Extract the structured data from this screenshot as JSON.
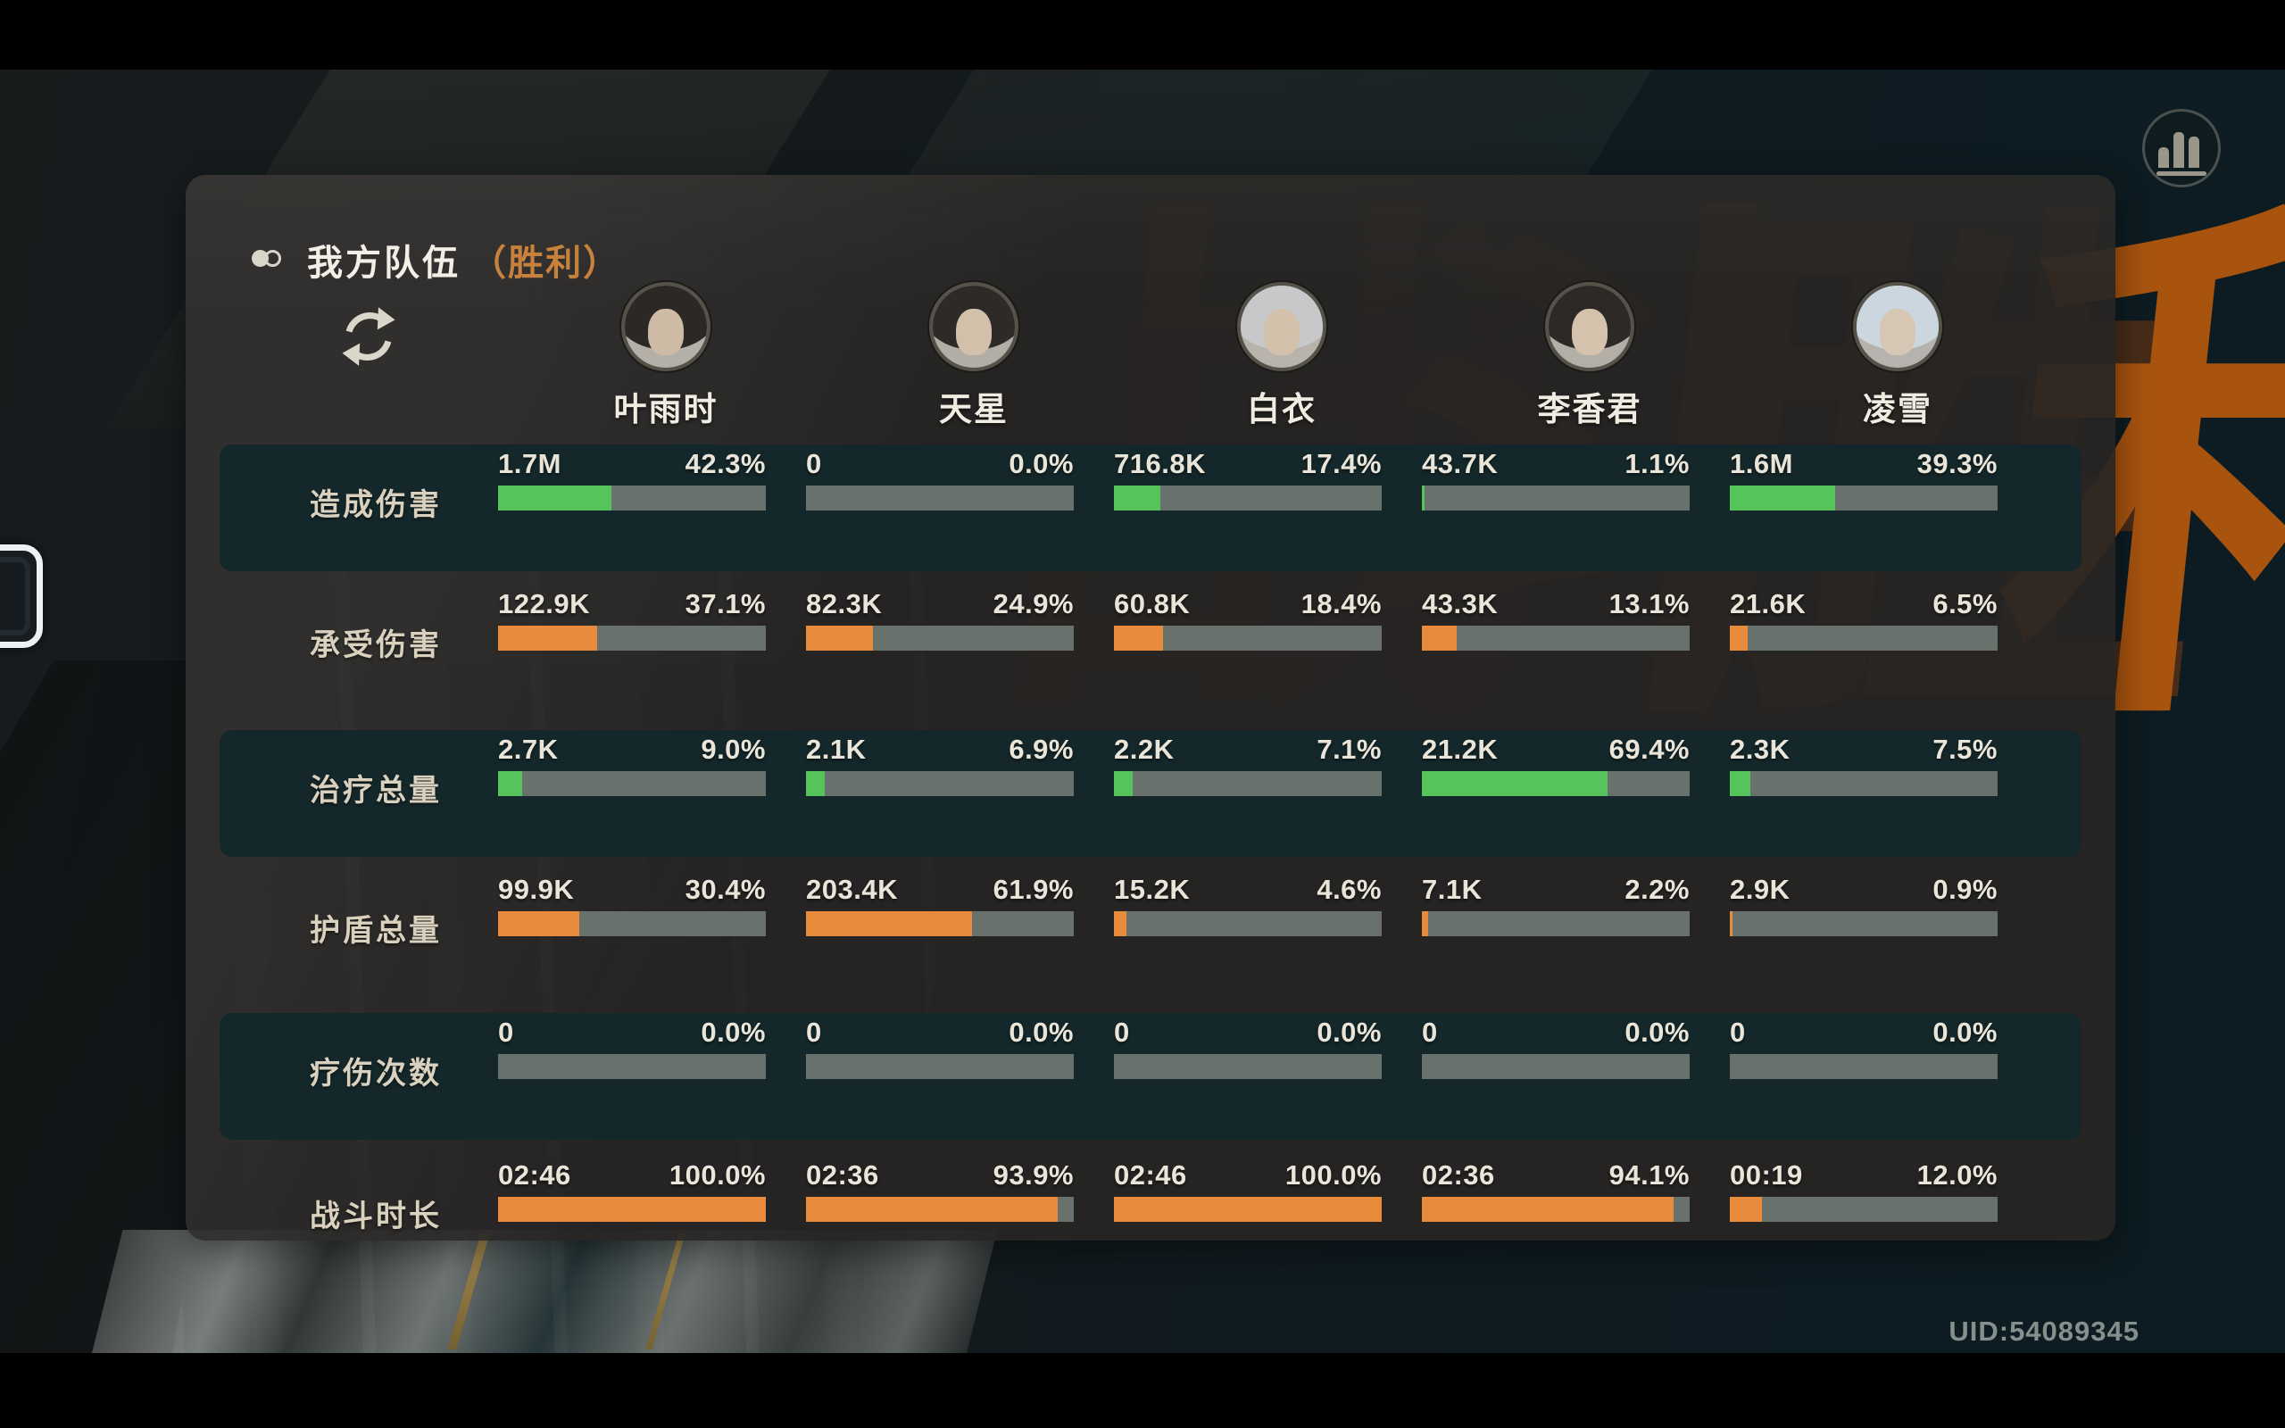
{
  "screen": {
    "uid": "UID:54089345"
  },
  "panel": {
    "title": "我方队伍",
    "result": "（胜利）",
    "watermark": [
      "战",
      "斗",
      "胜",
      "利"
    ]
  },
  "team": {
    "members": [
      {
        "name": "叶雨时",
        "portrait": {
          "bg": "#b5b0a7",
          "hair": "#2b2826",
          "skin": "#cdbba6"
        }
      },
      {
        "name": "天星",
        "portrait": {
          "bg": "#b2ada5",
          "hair": "#2d2a28",
          "skin": "#d2c0ab"
        }
      },
      {
        "name": "白衣",
        "portrait": {
          "bg": "#b8b4ac",
          "hair": "#c6c8ca",
          "skin": "#d3c1ac"
        }
      },
      {
        "name": "李香君",
        "portrait": {
          "bg": "#b4afa6",
          "hair": "#2c2927",
          "skin": "#d4c2ad"
        }
      },
      {
        "name": "凌雪",
        "portrait": {
          "bg": "#b6b3ae",
          "hair": "#ccd6df",
          "skin": "#d6c6b4"
        }
      }
    ]
  },
  "stats": {
    "rows": [
      {
        "label": "造成伤害",
        "bar_color": "#55c45a",
        "cells": [
          {
            "value": "1.7M",
            "percent": "42.3%",
            "fill": 42.3
          },
          {
            "value": "0",
            "percent": "0.0%",
            "fill": 0
          },
          {
            "value": "716.8K",
            "percent": "17.4%",
            "fill": 17.4
          },
          {
            "value": "43.7K",
            "percent": "1.1%",
            "fill": 1.1
          },
          {
            "value": "1.6M",
            "percent": "39.3%",
            "fill": 39.3
          }
        ]
      },
      {
        "label": "承受伤害",
        "bar_color": "#e88b3d",
        "cells": [
          {
            "value": "122.9K",
            "percent": "37.1%",
            "fill": 37.1
          },
          {
            "value": "82.3K",
            "percent": "24.9%",
            "fill": 24.9
          },
          {
            "value": "60.8K",
            "percent": "18.4%",
            "fill": 18.4
          },
          {
            "value": "43.3K",
            "percent": "13.1%",
            "fill": 13.1
          },
          {
            "value": "21.6K",
            "percent": "6.5%",
            "fill": 6.5
          }
        ]
      },
      {
        "label": "治疗总量",
        "bar_color": "#55c45a",
        "cells": [
          {
            "value": "2.7K",
            "percent": "9.0%",
            "fill": 9.0
          },
          {
            "value": "2.1K",
            "percent": "6.9%",
            "fill": 6.9
          },
          {
            "value": "2.2K",
            "percent": "7.1%",
            "fill": 7.1
          },
          {
            "value": "21.2K",
            "percent": "69.4%",
            "fill": 69.4
          },
          {
            "value": "2.3K",
            "percent": "7.5%",
            "fill": 7.5
          }
        ]
      },
      {
        "label": "护盾总量",
        "bar_color": "#e88b3d",
        "cells": [
          {
            "value": "99.9K",
            "percent": "30.4%",
            "fill": 30.4
          },
          {
            "value": "203.4K",
            "percent": "61.9%",
            "fill": 61.9
          },
          {
            "value": "15.2K",
            "percent": "4.6%",
            "fill": 4.6
          },
          {
            "value": "7.1K",
            "percent": "2.2%",
            "fill": 2.2
          },
          {
            "value": "2.9K",
            "percent": "0.9%",
            "fill": 0.9
          }
        ]
      },
      {
        "label": "疗伤次数",
        "bar_color": "#e88b3d",
        "cells": [
          {
            "value": "0",
            "percent": "0.0%",
            "fill": 0
          },
          {
            "value": "0",
            "percent": "0.0%",
            "fill": 0
          },
          {
            "value": "0",
            "percent": "0.0%",
            "fill": 0
          },
          {
            "value": "0",
            "percent": "0.0%",
            "fill": 0
          },
          {
            "value": "0",
            "percent": "0.0%",
            "fill": 0
          }
        ]
      },
      {
        "label": "战斗时长",
        "bar_color": "#e88b3d",
        "cells": [
          {
            "value": "02:46",
            "percent": "100.0%",
            "fill": 100
          },
          {
            "value": "02:36",
            "percent": "93.9%",
            "fill": 93.9
          },
          {
            "value": "02:46",
            "percent": "100.0%",
            "fill": 100
          },
          {
            "value": "02:36",
            "percent": "94.1%",
            "fill": 94.1
          },
          {
            "value": "00:19",
            "percent": "12.0%",
            "fill": 12.0
          }
        ]
      }
    ]
  },
  "icons": {
    "toggle": "team-toggle-icon",
    "refresh": "refresh-icon",
    "chart": "bar-chart-icon"
  },
  "colors": {
    "accent_orange": "#c8813c",
    "bar_green": "#55c45a",
    "bar_orange": "#e88b3d",
    "bar_track": "#68716c",
    "band_teal": "#14282b",
    "victory_orange": "#a8540f"
  }
}
